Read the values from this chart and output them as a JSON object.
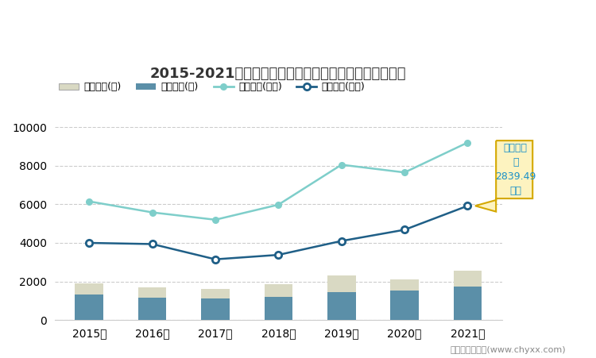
{
  "title": "2015-2021年甘肃省全部用地土地供应与成交情况统计图",
  "years": [
    "2015年",
    "2016年",
    "2017年",
    "2018年",
    "2019年",
    "2020年",
    "2021年"
  ],
  "bar_supply": [
    1900,
    1680,
    1620,
    1880,
    2310,
    2100,
    2540
  ],
  "bar_deal": [
    1340,
    1170,
    1110,
    1200,
    1430,
    1520,
    1750
  ],
  "line_supply_area": [
    6150,
    5580,
    5200,
    5980,
    8050,
    7650,
    9200
  ],
  "line_deal_area": [
    4000,
    3940,
    3150,
    3380,
    4100,
    4680,
    5920
  ],
  "bar_supply_color": "#d9d9c3",
  "bar_deal_color": "#5b8fa8",
  "line_supply_color": "#7ececa",
  "line_deal_color": "#1f5f87",
  "bg_color": "#ffffff",
  "annotation_box_color": "#fdf3c0",
  "annotation_border_color": "#d4a800",
  "annotation_text_color": "#1a90c8",
  "footer": "制图：智研咨询(www.chyxx.com)",
  "ylim": [
    0,
    10000
  ],
  "yticks": [
    0,
    2000,
    4000,
    6000,
    8000,
    10000
  ],
  "legend_labels": [
    "出让宗数(宗)",
    "成交宗数(宗)",
    "出让面积(万㎡)",
    "成交面积(万㎡)"
  ]
}
